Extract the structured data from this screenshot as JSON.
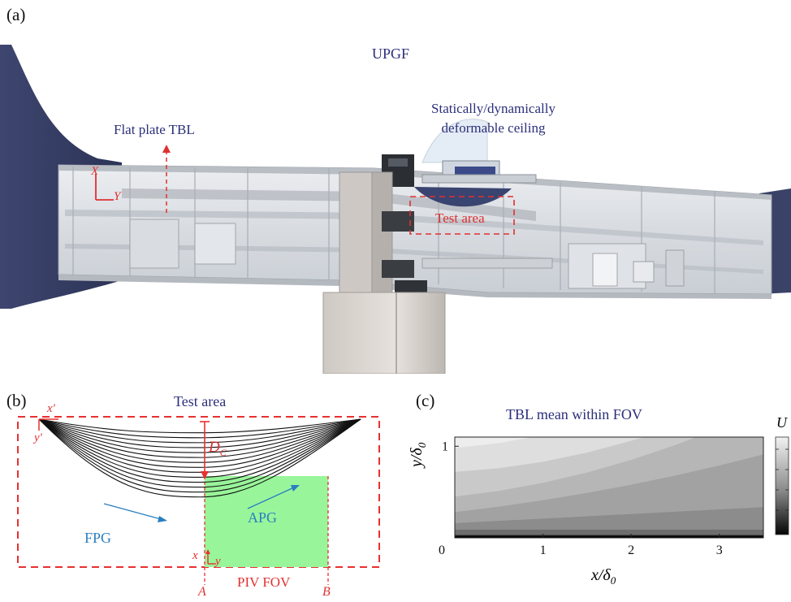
{
  "panel_a": {
    "label": "(a)",
    "title": "UPGF",
    "ceiling_label_line1": "Statically/dynamically",
    "ceiling_label_line2": "deformable ceiling",
    "flat_plate_label": "Flat plate TBL",
    "test_area_label": "Test area",
    "axis_x": "X",
    "axis_y": "Y"
  },
  "panel_b": {
    "label": "(b)",
    "title": "Test area",
    "x_prime": "x'",
    "y_prime": "y'",
    "dc_label": "D",
    "dc_sub": "C",
    "fpg_label": "FPG",
    "apg_label": "APG",
    "x_label": "x",
    "y_label": "y",
    "piv_label": "PIV FOV",
    "a_label": "A",
    "b_label": "B",
    "colors": {
      "dashed": "#e83030",
      "piv_fill": "#99f59a",
      "arrow": "#2a7fc0",
      "curves": "#111111"
    }
  },
  "panel_c": {
    "label": "(c)",
    "title": "TBL mean within FOV",
    "colorbar_label": "U"
  },
  "chart_data": {
    "type": "heatmap",
    "title": "TBL mean within FOV",
    "xlabel_main": "x/δ",
    "xlabel_sub": "0",
    "ylabel_main": "y/δ",
    "ylabel_sub": "0",
    "x_ticks": [
      0,
      1,
      2,
      3
    ],
    "y_ticks": [
      0,
      1
    ],
    "xlim": [
      0,
      3.5
    ],
    "ylim": [
      0,
      1.1
    ],
    "colorbar_label": "U",
    "colormap": "gray",
    "grid": false
  }
}
